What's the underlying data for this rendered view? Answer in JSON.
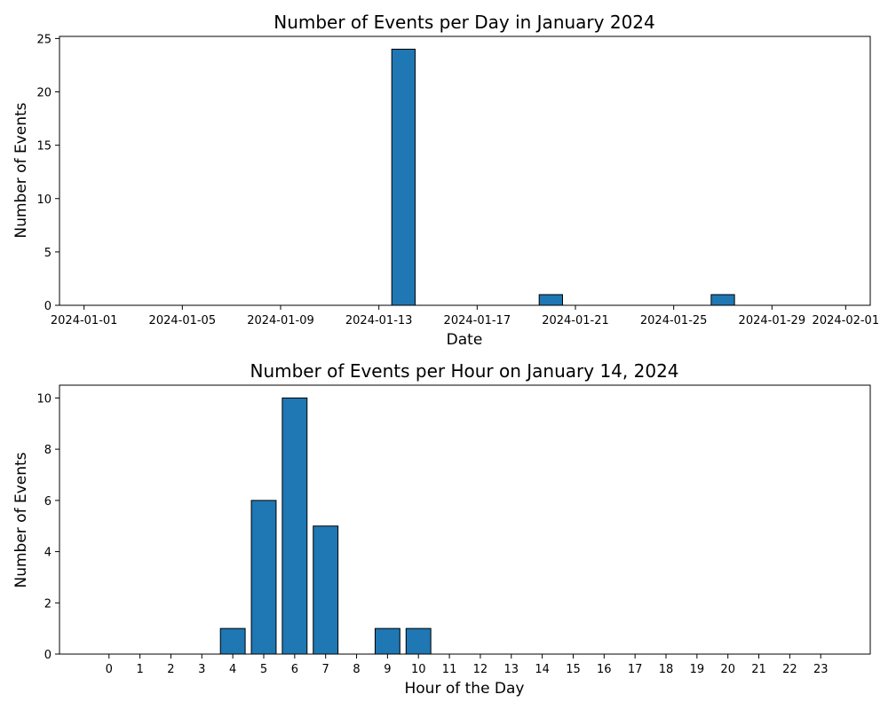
{
  "chart_data": [
    {
      "type": "bar",
      "title": "Number of Events per Day in January 2024",
      "xlabel": "Date",
      "ylabel": "Number of Events",
      "color": "#1f77b4",
      "edgecolor": "#000000",
      "x_axis_type": "date",
      "xlim": [
        "2023-12-31",
        "2024-02-02"
      ],
      "ylim": [
        0,
        25.2
      ],
      "x_ticks": [
        "2024-01-01",
        "2024-01-05",
        "2024-01-09",
        "2024-01-13",
        "2024-01-17",
        "2024-01-21",
        "2024-01-25",
        "2024-01-29",
        "2024-02-01"
      ],
      "y_ticks": [
        0,
        5,
        10,
        15,
        20,
        25
      ],
      "bars": [
        {
          "date": "2024-01-14",
          "value": 24
        },
        {
          "date": "2024-01-20",
          "value": 1
        },
        {
          "date": "2024-01-27",
          "value": 1
        }
      ],
      "grid": false,
      "legend": "none"
    },
    {
      "type": "bar",
      "title": "Number of Events per Hour on January 14, 2024",
      "xlabel": "Hour of the Day",
      "ylabel": "Number of Events",
      "color": "#1f77b4",
      "edgecolor": "#000000",
      "categories": [
        "0",
        "1",
        "2",
        "3",
        "4",
        "5",
        "6",
        "7",
        "8",
        "9",
        "10",
        "11",
        "12",
        "13",
        "14",
        "15",
        "16",
        "17",
        "18",
        "19",
        "20",
        "21",
        "22",
        "23"
      ],
      "values": [
        0,
        0,
        0,
        0,
        1,
        6,
        10,
        5,
        0,
        1,
        1,
        0,
        0,
        0,
        0,
        0,
        0,
        0,
        0,
        0,
        0,
        0,
        0,
        0
      ],
      "ylim": [
        0,
        10.5
      ],
      "y_ticks": [
        0,
        2,
        4,
        6,
        8,
        10
      ],
      "grid": false,
      "legend": "none"
    }
  ]
}
